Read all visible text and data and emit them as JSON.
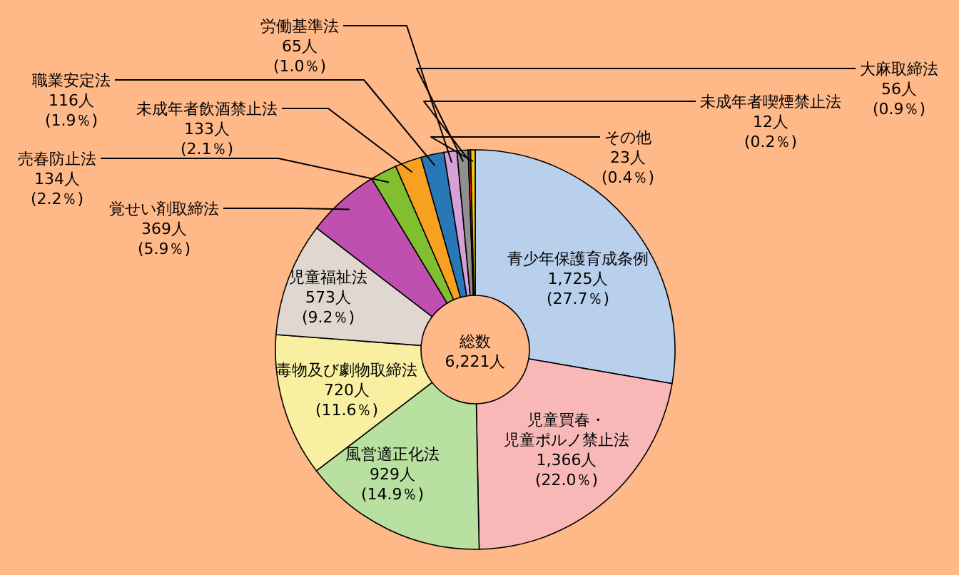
{
  "chart_data": {
    "type": "donut",
    "categories": [
      "青少年保護育成条例",
      "児童買春・児童ポルノ禁止法",
      "風営適正化法",
      "毒物及び劇物取締法",
      "児童福祉法",
      "覚せい剤取締法",
      "売春防止法",
      "未成年者飲酒禁止法",
      "職業安定法",
      "労働基準法",
      "大麻取締法",
      "未成年者喫煙禁止法",
      "その他"
    ],
    "values": [
      1725,
      1366,
      929,
      720,
      573,
      369,
      134,
      133,
      116,
      65,
      56,
      12,
      23
    ],
    "value_labels": [
      "1,725人\n(27.7％)",
      "1,366人\n(22.0％)",
      "929人\n(14.9％)",
      "720人\n(11.6％)",
      "573人\n(9.2％)",
      "369人\n(5.9％)",
      "134人\n(2.2％)",
      "133人\n(2.1％)",
      "116人\n(1.9％)",
      "65人\n(1.0％)",
      "56人\n(0.9％)",
      "12人\n(0.2％)",
      "23人\n(0.4％)"
    ],
    "colors": [
      "#b8d0ec",
      "#f8b8b8",
      "#b8e0a0",
      "#f8f0a0",
      "#e0d8d0",
      "#c050b0",
      "#80c030",
      "#f8a020",
      "#2878b8",
      "#d8a0d8",
      "#909090",
      "#e02020",
      "#f8c800"
    ],
    "annotations": [
      "総数\n6,221人"
    ]
  }
}
